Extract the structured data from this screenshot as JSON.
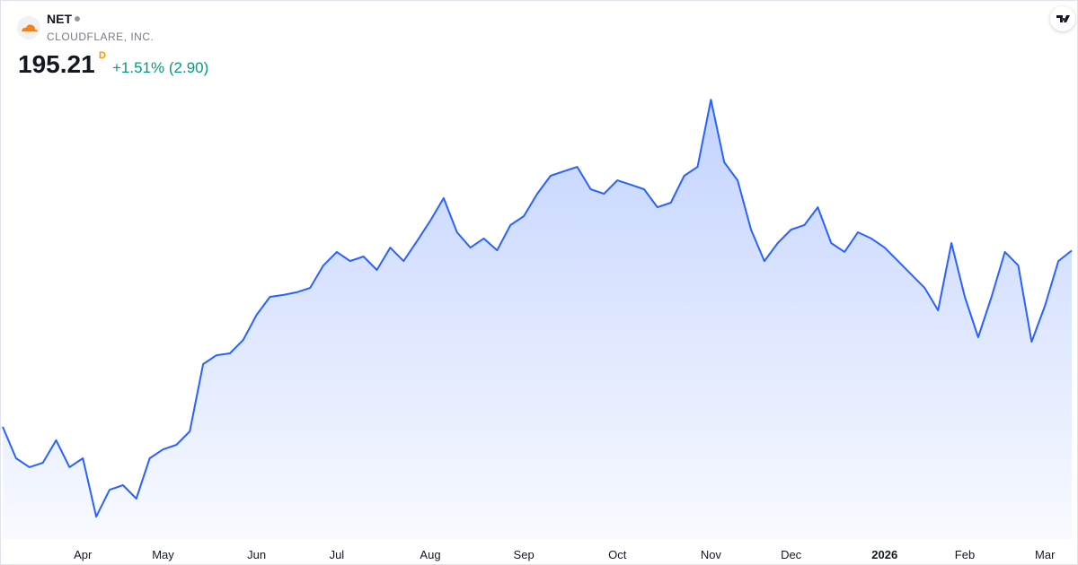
{
  "header": {
    "symbol": "NET",
    "company": "CLOUDFLARE, INC.",
    "price": "195.21",
    "interval": "D",
    "change": "+1.51% (2.90)"
  },
  "chart_data": {
    "type": "area",
    "color": "#2962ff",
    "categories": [
      null,
      null,
      null,
      null,
      null,
      null,
      "Apr",
      null,
      null,
      null,
      null,
      null,
      "May",
      null,
      null,
      null,
      null,
      null,
      null,
      "Jun",
      null,
      null,
      null,
      null,
      null,
      "Jul",
      null,
      null,
      null,
      null,
      null,
      null,
      "Aug",
      null,
      null,
      null,
      null,
      null,
      null,
      "Sep",
      null,
      null,
      null,
      null,
      null,
      null,
      "Oct",
      null,
      null,
      null,
      null,
      null,
      null,
      "Nov",
      null,
      null,
      null,
      null,
      null,
      "Dec",
      null,
      null,
      null,
      null,
      null,
      null,
      "2026",
      null,
      null,
      null,
      null,
      null,
      "Feb",
      null,
      null,
      null,
      null,
      null,
      "Mar",
      null,
      null
    ],
    "values": [
      129.7,
      118,
      114.7,
      116.3,
      124.7,
      114.7,
      118,
      96.3,
      106.3,
      108,
      103,
      118,
      121.3,
      123,
      128,
      153,
      156.3,
      157,
      162,
      171.3,
      178,
      178.7,
      179.7,
      181.3,
      189.7,
      194.7,
      191.3,
      193,
      188,
      196.3,
      191.3,
      198.7,
      206.3,
      214.7,
      202,
      196.3,
      199.7,
      195.3,
      204.7,
      208,
      216.3,
      223,
      224.7,
      226.3,
      218,
      216.3,
      221.3,
      219.7,
      218,
      211.3,
      213,
      223,
      226.3,
      251.3,
      228,
      221.3,
      203,
      191.3,
      198,
      203,
      204.7,
      211.3,
      198,
      194.7,
      202,
      199.7,
      196.3,
      191.3,
      186.3,
      181.3,
      173,
      198,
      178,
      163,
      178,
      194.7,
      189.7,
      161.3,
      174.7,
      191.3,
      195.21
    ],
    "ylim": [
      88,
      288
    ]
  }
}
